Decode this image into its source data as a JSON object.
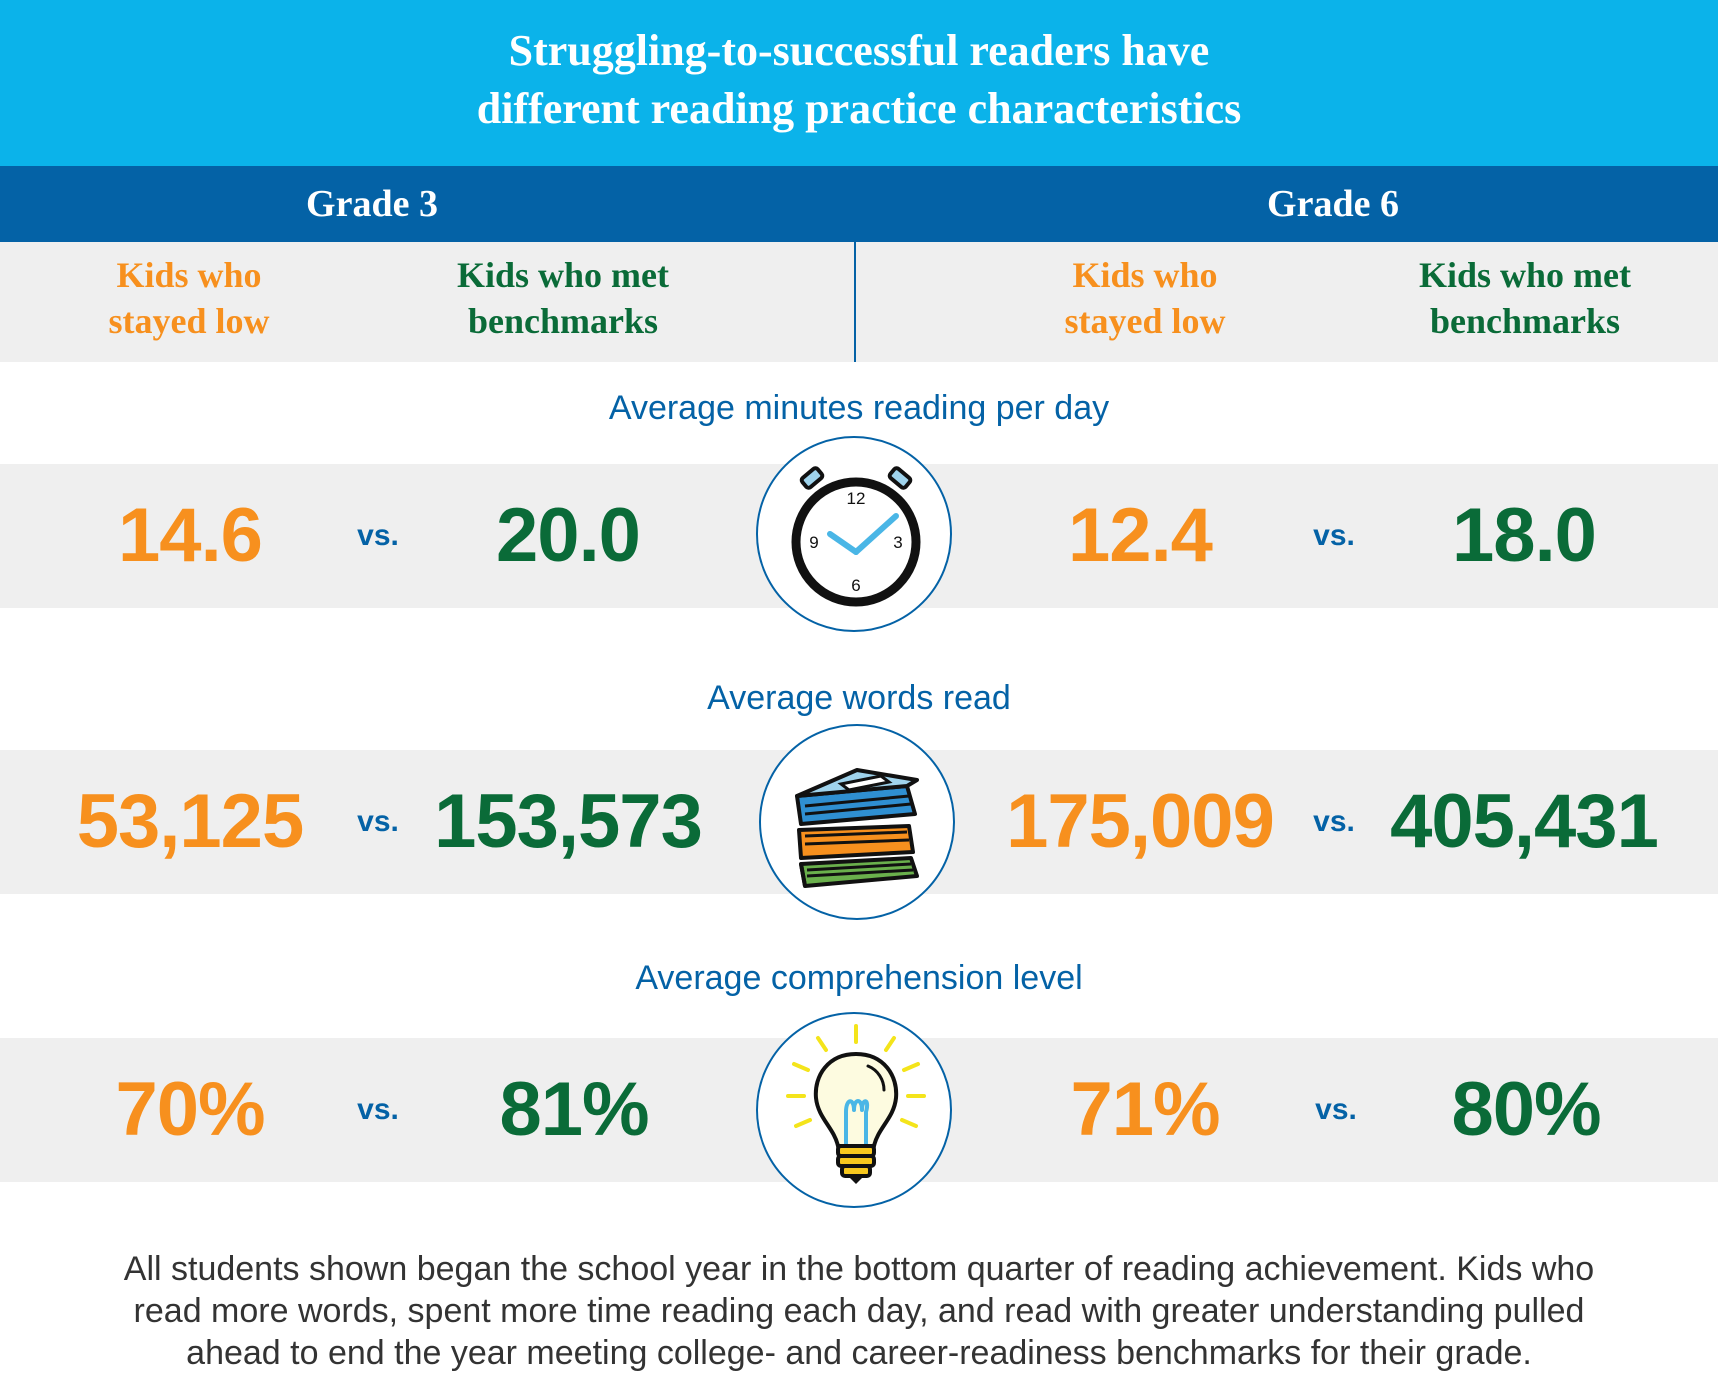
{
  "title_line1": "Struggling-to-successful readers have",
  "title_line2": "different reading practice characteristics",
  "grades": [
    "Grade 3",
    "Grade 6"
  ],
  "column_headers": {
    "stayed_low_line1": "Kids who",
    "stayed_low_line2": "stayed low",
    "met_line1": "Kids who met",
    "met_line2": "benchmarks"
  },
  "vs_label": "vs.",
  "colors": {
    "title_bar": "#0bb3ea",
    "grade_bar": "#0462a6",
    "stayed_low": "#f7901e",
    "met_benchmarks": "#0a6b38",
    "metric_title": "#0462a6",
    "band": "#efefef"
  },
  "clock_numbers": [
    "12",
    "3",
    "6",
    "9"
  ],
  "chart_data": {
    "type": "table",
    "columns": [
      "Grade 3 - Kids who stayed low",
      "Grade 3 - Kids who met benchmarks",
      "Grade 6 - Kids who stayed low",
      "Grade 6 - Kids who met benchmarks"
    ],
    "metrics": [
      {
        "name": "Average minutes reading per day",
        "icon": "clock-icon",
        "values": [
          14.6,
          20.0,
          12.4,
          18.0
        ],
        "labels": [
          "14.6",
          "20.0",
          "12.4",
          "18.0"
        ]
      },
      {
        "name": "Average words read",
        "icon": "books-icon",
        "values": [
          53125,
          153573,
          175009,
          405431
        ],
        "labels": [
          "53,125",
          "153,573",
          "175,009",
          "405,431"
        ]
      },
      {
        "name": "Average comprehension level",
        "icon": "lightbulb-icon",
        "values": [
          70,
          81,
          71,
          80
        ],
        "labels": [
          "70%",
          "81%",
          "71%",
          "80%"
        ]
      }
    ]
  },
  "footnote_line1": "All students shown began the school year in the bottom quarter of reading achievement. Kids who",
  "footnote_line2": "read more words, spent more time reading each day, and read with greater understanding pulled",
  "footnote_line3": "ahead to end the year meeting college- and career-readiness benchmarks for their grade."
}
